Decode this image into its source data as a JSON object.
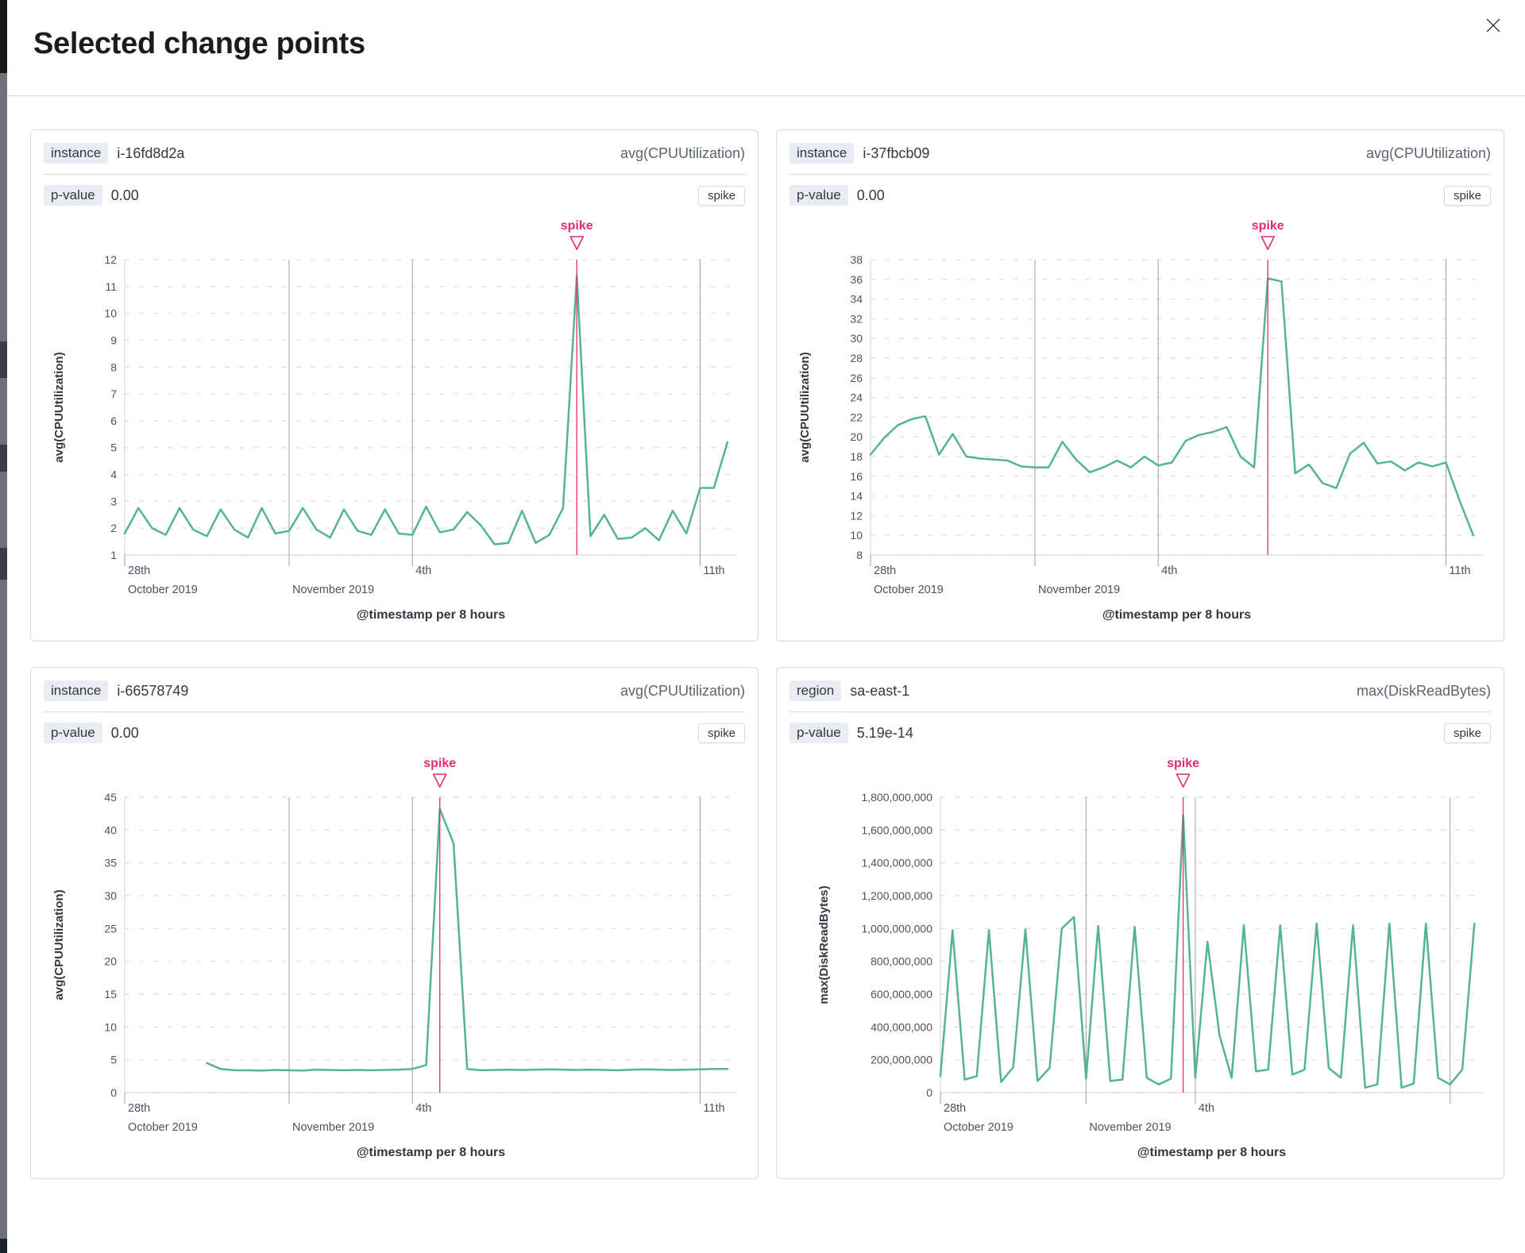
{
  "modal": {
    "title": "Selected change points"
  },
  "colors": {
    "line": "#54b399",
    "annotation": "#e22d72",
    "grid": "#dde1ea",
    "axis": "#d6dbe4",
    "vline": "#99a0aa",
    "tick_text": "#4c5260",
    "title_text": "#343741"
  },
  "panels": [
    {
      "field_label": "instance",
      "field_value": "i-16fd8d2a",
      "metric": "avg(CPUUtilization)",
      "pvalue_label": "p-value",
      "pvalue": "0.00",
      "change_type": "spike"
    },
    {
      "field_label": "instance",
      "field_value": "i-37fbcb09",
      "metric": "avg(CPUUtilization)",
      "pvalue_label": "p-value",
      "pvalue": "0.00",
      "change_type": "spike"
    },
    {
      "field_label": "instance",
      "field_value": "i-66578749",
      "metric": "avg(CPUUtilization)",
      "pvalue_label": "p-value",
      "pvalue": "0.00",
      "change_type": "spike"
    },
    {
      "field_label": "region",
      "field_value": "sa-east-1",
      "metric": "max(DiskReadBytes)",
      "pvalue_label": "p-value",
      "pvalue": "5.19e-14",
      "change_type": "spike"
    }
  ],
  "chart_data": [
    {
      "type": "line",
      "ylabel": "avg(CPUUtilization)",
      "xlabel": "@timestamp per 8 hours",
      "ylim": [
        1,
        12
      ],
      "yticks": [
        12,
        11,
        10,
        9,
        8,
        7,
        6,
        5,
        4,
        3,
        2,
        1
      ],
      "ytick_grouped": false,
      "x_domain": [
        0,
        44.7
      ],
      "vertical_gridlines": [
        12,
        21,
        42
      ],
      "x_axis_labels": [
        {
          "x": 0,
          "day": "28th",
          "month": "October 2019"
        },
        {
          "x": 12,
          "month": "November 2019"
        },
        {
          "x": 21,
          "day": "4th"
        },
        {
          "x": 42,
          "day": "11th"
        }
      ],
      "annotation": {
        "type": "spike",
        "x": 33
      },
      "values": [
        1.8,
        2.75,
        2.0,
        1.75,
        2.75,
        1.95,
        1.7,
        2.7,
        1.95,
        1.65,
        2.75,
        1.8,
        1.9,
        2.75,
        1.95,
        1.65,
        2.7,
        1.9,
        1.75,
        2.7,
        1.8,
        1.75,
        2.8,
        1.85,
        1.95,
        2.6,
        2.1,
        1.4,
        1.45,
        2.65,
        1.45,
        1.75,
        2.75,
        11.4,
        1.7,
        2.5,
        1.6,
        1.65,
        2.0,
        1.55,
        2.65,
        1.8,
        3.5,
        3.5,
        5.2
      ]
    },
    {
      "type": "line",
      "ylabel": "avg(CPUUtilization)",
      "xlabel": "@timestamp per 8 hours",
      "ylim": [
        8,
        38
      ],
      "yticks": [
        38,
        36,
        34,
        32,
        30,
        28,
        26,
        24,
        22,
        20,
        18,
        16,
        14,
        12,
        10,
        8
      ],
      "ytick_grouped": false,
      "x_domain": [
        0,
        44.7
      ],
      "vertical_gridlines": [
        12,
        21,
        42
      ],
      "x_axis_labels": [
        {
          "x": 0,
          "day": "28th",
          "month": "October 2019"
        },
        {
          "x": 12,
          "month": "November 2019"
        },
        {
          "x": 21,
          "day": "4th"
        },
        {
          "x": 42,
          "day": "11th"
        }
      ],
      "annotation": {
        "type": "spike",
        "x": 29
      },
      "values": [
        18.2,
        19.9,
        21.2,
        21.8,
        22.1,
        18.2,
        20.3,
        18.0,
        17.8,
        17.7,
        17.6,
        17.0,
        16.9,
        16.9,
        19.5,
        17.7,
        16.4,
        16.9,
        17.6,
        16.9,
        18.0,
        17.1,
        17.4,
        19.6,
        20.2,
        20.5,
        21.0,
        18.0,
        16.9,
        36.1,
        35.8,
        16.3,
        17.2,
        15.3,
        14.8,
        18.3,
        19.4,
        17.3,
        17.5,
        16.6,
        17.4,
        17.0,
        17.4,
        13.5,
        10.0
      ]
    },
    {
      "type": "line",
      "ylabel": "avg(CPUUtilization)",
      "xlabel": "@timestamp per 8 hours",
      "ylim": [
        0,
        45
      ],
      "yticks": [
        45,
        40,
        35,
        30,
        25,
        20,
        15,
        10,
        5,
        0
      ],
      "ytick_grouped": false,
      "x_domain": [
        0,
        44.7
      ],
      "vertical_gridlines": [
        12,
        21,
        42
      ],
      "x_axis_labels": [
        {
          "x": 0,
          "day": "28th",
          "month": "October 2019"
        },
        {
          "x": 12,
          "month": "November 2019"
        },
        {
          "x": 21,
          "day": "4th"
        },
        {
          "x": 42,
          "day": "11th"
        }
      ],
      "annotation": {
        "type": "spike",
        "x": 23
      },
      "values": [
        null,
        null,
        null,
        null,
        null,
        null,
        4.5,
        3.6,
        3.4,
        3.4,
        3.35,
        3.45,
        3.4,
        3.35,
        3.5,
        3.45,
        3.4,
        3.45,
        3.4,
        3.45,
        3.5,
        3.6,
        4.2,
        43.2,
        38.0,
        3.6,
        3.4,
        3.45,
        3.5,
        3.45,
        3.5,
        3.55,
        3.5,
        3.45,
        3.5,
        3.45,
        3.4,
        3.5,
        3.55,
        3.5,
        3.45,
        3.5,
        3.55,
        3.6,
        3.6
      ]
    },
    {
      "type": "line",
      "ylabel": "max(DiskReadBytes)",
      "xlabel": "@timestamp per 8 hours",
      "ylim": [
        0,
        1800000000
      ],
      "yticks": [
        1800000000,
        1600000000,
        1400000000,
        1200000000,
        1000000000,
        800000000,
        600000000,
        400000000,
        200000000,
        0
      ],
      "ytick_grouped": true,
      "x_domain": [
        0,
        44.7
      ],
      "vertical_gridlines": [
        12,
        21,
        42
      ],
      "x_axis_labels": [
        {
          "x": 0,
          "day": "28th",
          "month": "October 2019"
        },
        {
          "x": 12,
          "month": "November 2019"
        },
        {
          "x": 21,
          "day": "4th"
        }
      ],
      "annotation": {
        "type": "spike",
        "x": 20
      },
      "values": [
        100000000,
        990000000,
        80000000,
        100000000,
        990000000,
        65000000,
        155000000,
        995000000,
        70000000,
        150000000,
        1000000000,
        1070000000,
        85000000,
        1015000000,
        70000000,
        80000000,
        1010000000,
        90000000,
        50000000,
        85000000,
        1690000000,
        90000000,
        920000000,
        350000000,
        90000000,
        1020000000,
        130000000,
        140000000,
        1020000000,
        110000000,
        140000000,
        1030000000,
        150000000,
        90000000,
        1020000000,
        30000000,
        50000000,
        1030000000,
        30000000,
        55000000,
        1030000000,
        90000000,
        50000000,
        140000000,
        1030000000
      ]
    }
  ]
}
